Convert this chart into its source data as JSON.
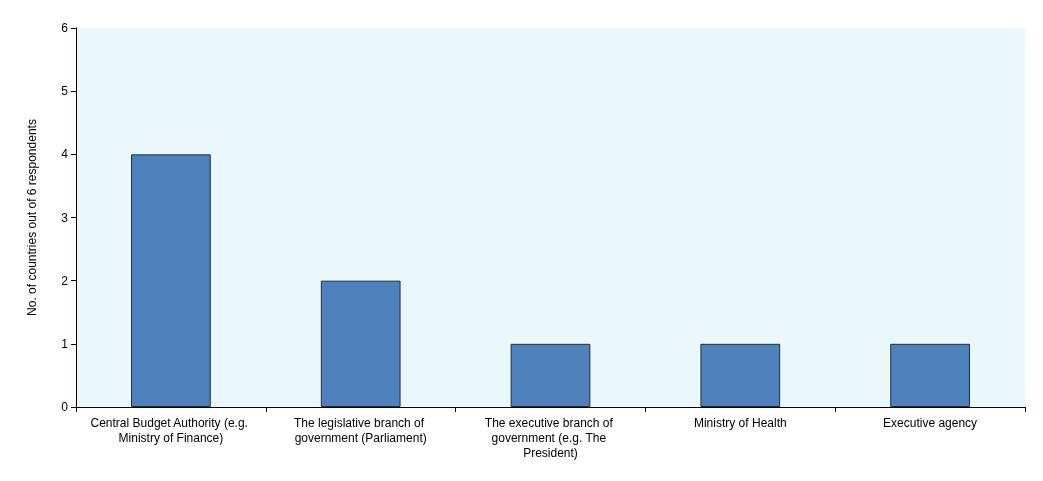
{
  "chart_data": {
    "type": "bar",
    "ylabel": "No. of countries out of 6 respondents",
    "categories": [
      "Central Budget Authority (e.g. Ministry of Finance)",
      "The legislative branch of government (Parliament)",
      "The executive branch of government (e.g. The President)",
      "Ministry of Health",
      "Executive agency"
    ],
    "values": [
      4,
      2,
      1,
      1,
      1
    ],
    "color": "#4f81bd",
    "ylim": [
      0,
      6
    ],
    "yticks": [
      0,
      1,
      2,
      3,
      4,
      5,
      6
    ],
    "grid": false
  }
}
